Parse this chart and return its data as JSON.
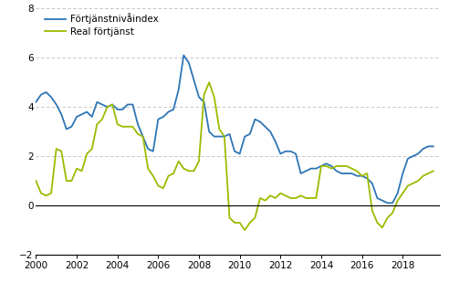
{
  "legend_blue": "Förtjänstnivåindex",
  "legend_green": "Real förtjänst",
  "blue_color": "#2E75B6",
  "green_color": "#9BBB00",
  "ylim": [
    -2,
    8
  ],
  "yticks": [
    -2,
    0,
    2,
    4,
    6,
    8
  ],
  "xlim": [
    2000.0,
    2019.83
  ],
  "xticks": [
    2000,
    2002,
    2004,
    2006,
    2008,
    2010,
    2012,
    2014,
    2016,
    2018
  ],
  "blue_data": [
    4.2,
    4.5,
    4.6,
    4.4,
    4.1,
    3.7,
    3.1,
    3.2,
    3.6,
    3.7,
    3.8,
    3.6,
    4.2,
    4.1,
    4.0,
    4.1,
    3.9,
    3.9,
    4.1,
    4.1,
    3.3,
    2.8,
    2.3,
    2.2,
    3.5,
    3.6,
    3.8,
    3.9,
    4.7,
    6.1,
    5.8,
    5.1,
    4.4,
    4.2,
    3.0,
    2.8,
    2.8,
    2.8,
    2.9,
    2.2,
    2.1,
    2.8,
    2.9,
    3.5,
    3.4,
    3.2,
    3.0,
    2.6,
    2.1,
    2.2,
    2.2,
    2.1,
    1.3,
    1.4,
    1.5,
    1.5,
    1.6,
    1.7,
    1.6,
    1.4,
    1.3,
    1.3,
    1.3,
    1.2,
    1.2,
    1.1,
    0.9,
    0.3,
    0.2,
    0.1,
    0.1,
    0.5,
    1.3,
    1.9,
    2.0,
    2.1,
    2.3,
    2.4,
    2.4
  ],
  "green_data": [
    1.0,
    0.5,
    0.4,
    0.5,
    2.3,
    2.2,
    1.0,
    1.0,
    1.5,
    1.4,
    2.1,
    2.3,
    3.3,
    3.5,
    4.0,
    4.1,
    3.3,
    3.2,
    3.2,
    3.2,
    2.9,
    2.8,
    1.5,
    1.2,
    0.8,
    0.7,
    1.2,
    1.3,
    1.8,
    1.5,
    1.4,
    1.4,
    1.8,
    4.5,
    5.0,
    4.4,
    3.1,
    2.8,
    -0.5,
    -0.7,
    -0.7,
    -1.0,
    -0.7,
    -0.5,
    0.3,
    0.2,
    0.4,
    0.3,
    0.5,
    0.4,
    0.3,
    0.3,
    0.4,
    0.3,
    0.3,
    0.3,
    1.6,
    1.6,
    1.5,
    1.6,
    1.6,
    1.6,
    1.5,
    1.4,
    1.2,
    1.3,
    -0.2,
    -0.7,
    -0.9,
    -0.5,
    -0.3,
    0.2,
    0.5,
    0.8,
    0.9,
    1.0,
    1.2,
    1.3,
    1.4
  ]
}
